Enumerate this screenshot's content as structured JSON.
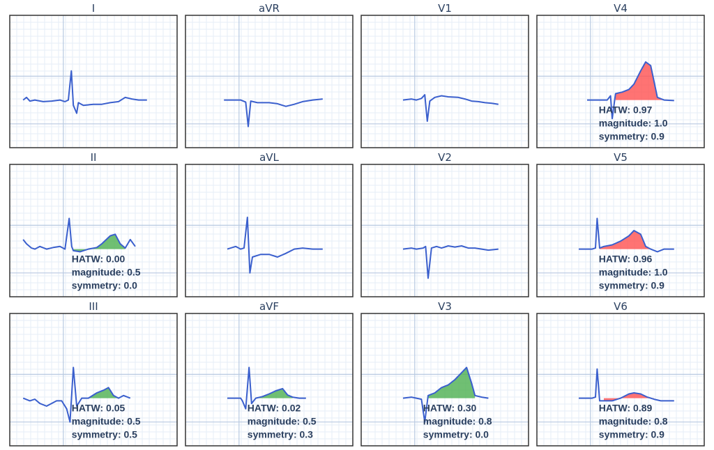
{
  "chart_data": [
    {
      "type": "line",
      "lead": "I",
      "grid": true,
      "trace": [
        [
          0.08,
          0
        ],
        [
          0.1,
          0.05
        ],
        [
          0.12,
          -0.02
        ],
        [
          0.15,
          0
        ],
        [
          0.2,
          -0.03
        ],
        [
          0.25,
          -0.02
        ],
        [
          0.3,
          0
        ],
        [
          0.33,
          -0.03
        ],
        [
          0.35,
          0
        ],
        [
          0.368,
          0.55
        ],
        [
          0.38,
          -0.1
        ],
        [
          0.4,
          -0.25
        ],
        [
          0.41,
          -0.05
        ],
        [
          0.44,
          -0.1
        ],
        [
          0.5,
          -0.08
        ],
        [
          0.55,
          -0.08
        ],
        [
          0.6,
          -0.05
        ],
        [
          0.65,
          -0.03
        ],
        [
          0.69,
          0.05
        ],
        [
          0.73,
          0.02
        ],
        [
          0.77,
          0
        ],
        [
          0.82,
          0
        ]
      ],
      "fill": null,
      "metrics": null
    },
    {
      "type": "line",
      "lead": "aVR",
      "grid": true,
      "trace": [
        [
          0.23,
          0
        ],
        [
          0.3,
          0
        ],
        [
          0.33,
          0
        ],
        [
          0.36,
          -0.04
        ],
        [
          0.375,
          -0.5
        ],
        [
          0.39,
          -0.02
        ],
        [
          0.43,
          -0.05
        ],
        [
          0.5,
          -0.05
        ],
        [
          0.55,
          -0.07
        ],
        [
          0.6,
          -0.12
        ],
        [
          0.65,
          -0.08
        ],
        [
          0.7,
          -0.03
        ],
        [
          0.76,
          0
        ],
        [
          0.82,
          0.02
        ]
      ],
      "fill": null,
      "metrics": null
    },
    {
      "type": "line",
      "lead": "V1",
      "grid": true,
      "trace": [
        [
          0.25,
          0
        ],
        [
          0.3,
          0.02
        ],
        [
          0.33,
          0
        ],
        [
          0.36,
          0.03
        ],
        [
          0.38,
          0.1
        ],
        [
          0.395,
          -0.4
        ],
        [
          0.41,
          -0.02
        ],
        [
          0.44,
          0.05
        ],
        [
          0.48,
          0.08
        ],
        [
          0.52,
          0.06
        ],
        [
          0.58,
          0.05
        ],
        [
          0.62,
          0.02
        ],
        [
          0.66,
          -0.02
        ],
        [
          0.7,
          -0.03
        ],
        [
          0.74,
          -0.05
        ],
        [
          0.78,
          -0.06
        ],
        [
          0.82,
          -0.08
        ]
      ],
      "fill": null,
      "metrics": null
    },
    {
      "type": "line",
      "lead": "V4",
      "grid": true,
      "trace": [
        [
          0.3,
          0
        ],
        [
          0.36,
          0
        ],
        [
          0.42,
          0
        ],
        [
          0.44,
          0.08
        ],
        [
          0.45,
          -0.35
        ],
        [
          0.47,
          0.12
        ],
        [
          0.51,
          0.15
        ],
        [
          0.55,
          0.2
        ],
        [
          0.58,
          0.3
        ],
        [
          0.62,
          0.55
        ],
        [
          0.65,
          0.72
        ],
        [
          0.68,
          0.65
        ],
        [
          0.7,
          0.35
        ],
        [
          0.72,
          0.05
        ],
        [
          0.76,
          0
        ],
        [
          0.82,
          -0.01
        ]
      ],
      "fill": {
        "color": "#ff5050",
        "from": 0.47,
        "to": 0.76
      },
      "metrics": {
        "hatw": "HATW: 0.97",
        "magnitude": "magnitude: 1.0",
        "symmetry": "symmetry: 0.9"
      }
    },
    {
      "type": "line",
      "lead": "II",
      "grid": true,
      "trace": [
        [
          0.08,
          0.18
        ],
        [
          0.1,
          0.1
        ],
        [
          0.13,
          0.02
        ],
        [
          0.15,
          0
        ],
        [
          0.18,
          0.05
        ],
        [
          0.22,
          0
        ],
        [
          0.26,
          0.03
        ],
        [
          0.3,
          0.05
        ],
        [
          0.33,
          0
        ],
        [
          0.355,
          0.58
        ],
        [
          0.37,
          0.05
        ],
        [
          0.38,
          -0.03
        ],
        [
          0.42,
          -0.05
        ],
        [
          0.47,
          0
        ],
        [
          0.52,
          0.03
        ],
        [
          0.55,
          0.1
        ],
        [
          0.6,
          0.25
        ],
        [
          0.63,
          0.28
        ],
        [
          0.66,
          0.1
        ],
        [
          0.69,
          0.02
        ],
        [
          0.72,
          0.18
        ],
        [
          0.75,
          0.05
        ]
      ],
      "fill": {
        "color": "#4caf50",
        "from": 0.38,
        "to": 0.69
      },
      "metrics": {
        "hatw": "HATW: 0.00",
        "magnitude": "magnitude: 0.5",
        "symmetry": "symmetry: 0.0"
      }
    },
    {
      "type": "line",
      "lead": "aVL",
      "grid": true,
      "trace": [
        [
          0.25,
          0
        ],
        [
          0.3,
          0.05
        ],
        [
          0.33,
          0
        ],
        [
          0.35,
          0.02
        ],
        [
          0.37,
          0.6
        ],
        [
          0.385,
          -0.45
        ],
        [
          0.4,
          -0.15
        ],
        [
          0.45,
          -0.1
        ],
        [
          0.5,
          -0.1
        ],
        [
          0.55,
          -0.15
        ],
        [
          0.6,
          -0.08
        ],
        [
          0.65,
          0
        ],
        [
          0.7,
          0.02
        ],
        [
          0.76,
          0
        ],
        [
          0.82,
          0
        ]
      ],
      "fill": null,
      "metrics": null
    },
    {
      "type": "line",
      "lead": "V2",
      "grid": true,
      "trace": [
        [
          0.25,
          0
        ],
        [
          0.3,
          0.02
        ],
        [
          0.33,
          0
        ],
        [
          0.37,
          0.02
        ],
        [
          0.385,
          0.05
        ],
        [
          0.4,
          -0.55
        ],
        [
          0.42,
          0.02
        ],
        [
          0.45,
          0.05
        ],
        [
          0.48,
          0.02
        ],
        [
          0.52,
          0.06
        ],
        [
          0.56,
          0.04
        ],
        [
          0.6,
          0.06
        ],
        [
          0.64,
          0.02
        ],
        [
          0.68,
          0.02
        ],
        [
          0.72,
          0
        ],
        [
          0.76,
          -0.02
        ],
        [
          0.82,
          0
        ]
      ],
      "fill": null,
      "metrics": null
    },
    {
      "type": "line",
      "lead": "V5",
      "grid": true,
      "trace": [
        [
          0.25,
          0
        ],
        [
          0.3,
          0
        ],
        [
          0.33,
          0
        ],
        [
          0.35,
          0.02
        ],
        [
          0.36,
          0.58
        ],
        [
          0.375,
          0.02
        ],
        [
          0.4,
          0.05
        ],
        [
          0.45,
          0.08
        ],
        [
          0.5,
          0.15
        ],
        [
          0.55,
          0.25
        ],
        [
          0.58,
          0.35
        ],
        [
          0.62,
          0.28
        ],
        [
          0.65,
          0.05
        ],
        [
          0.68,
          0
        ],
        [
          0.72,
          -0.05
        ],
        [
          0.76,
          0
        ],
        [
          0.82,
          0
        ]
      ],
      "fill": {
        "color": "#ff5050",
        "from": 0.375,
        "to": 0.7
      },
      "metrics": {
        "hatw": "HATW: 0.96",
        "magnitude": "magnitude: 1.0",
        "symmetry": "symmetry: 0.9"
      }
    },
    {
      "type": "line",
      "lead": "III",
      "grid": true,
      "trace": [
        [
          0.08,
          0
        ],
        [
          0.12,
          -0.05
        ],
        [
          0.15,
          -0.02
        ],
        [
          0.18,
          -0.1
        ],
        [
          0.22,
          -0.15
        ],
        [
          0.28,
          -0.05
        ],
        [
          0.31,
          -0.05
        ],
        [
          0.34,
          -0.2
        ],
        [
          0.36,
          -0.45
        ],
        [
          0.38,
          0.58
        ],
        [
          0.4,
          -0.15
        ],
        [
          0.43,
          0
        ],
        [
          0.47,
          0
        ],
        [
          0.52,
          0.1
        ],
        [
          0.56,
          0.15
        ],
        [
          0.59,
          0.2
        ],
        [
          0.62,
          0.05
        ],
        [
          0.65,
          0
        ],
        [
          0.68,
          0.05
        ],
        [
          0.72,
          0
        ]
      ],
      "fill": {
        "color": "#4caf50",
        "from": 0.45,
        "to": 0.66
      },
      "metrics": {
        "hatw": "HATW: 0.05",
        "magnitude": "magnitude: 0.5",
        "symmetry": "symmetry: 0.5"
      }
    },
    {
      "type": "line",
      "lead": "aVF",
      "grid": true,
      "trace": [
        [
          0.25,
          0
        ],
        [
          0.3,
          0
        ],
        [
          0.33,
          0
        ],
        [
          0.34,
          -0.05
        ],
        [
          0.36,
          -0.2
        ],
        [
          0.38,
          0.58
        ],
        [
          0.395,
          -0.1
        ],
        [
          0.42,
          0
        ],
        [
          0.46,
          0.03
        ],
        [
          0.5,
          0.08
        ],
        [
          0.54,
          0.14
        ],
        [
          0.58,
          0.18
        ],
        [
          0.61,
          0.06
        ],
        [
          0.64,
          0.02
        ],
        [
          0.68,
          0
        ],
        [
          0.72,
          0
        ]
      ],
      "fill": {
        "color": "#4caf50",
        "from": 0.42,
        "to": 0.64
      },
      "metrics": {
        "hatw": "HATW: 0.02",
        "magnitude": "magnitude: 0.5",
        "symmetry": "symmetry: 0.3"
      }
    },
    {
      "type": "line",
      "lead": "V3",
      "grid": true,
      "trace": [
        [
          0.25,
          0
        ],
        [
          0.3,
          0.02
        ],
        [
          0.33,
          0
        ],
        [
          0.36,
          -0.02
        ],
        [
          0.38,
          -0.45
        ],
        [
          0.4,
          0.05
        ],
        [
          0.44,
          0.1
        ],
        [
          0.48,
          0.2
        ],
        [
          0.52,
          0.25
        ],
        [
          0.56,
          0.35
        ],
        [
          0.6,
          0.48
        ],
        [
          0.63,
          0.58
        ],
        [
          0.66,
          0.28
        ],
        [
          0.68,
          0.05
        ],
        [
          0.72,
          0.02
        ],
        [
          0.76,
          0
        ]
      ],
      "fill": {
        "color": "#4caf50",
        "from": 0.4,
        "to": 0.68
      },
      "metrics": {
        "hatw": "HATW: 0.30",
        "magnitude": "magnitude: 0.8",
        "symmetry": "symmetry: 0.0"
      }
    },
    {
      "type": "line",
      "lead": "V6",
      "grid": true,
      "trace": [
        [
          0.25,
          0
        ],
        [
          0.3,
          0
        ],
        [
          0.33,
          0
        ],
        [
          0.35,
          0.02
        ],
        [
          0.36,
          0.55
        ],
        [
          0.375,
          -0.05
        ],
        [
          0.4,
          -0.05
        ],
        [
          0.45,
          -0.05
        ],
        [
          0.5,
          0
        ],
        [
          0.55,
          0.08
        ],
        [
          0.58,
          0.1
        ],
        [
          0.62,
          0.08
        ],
        [
          0.66,
          0.02
        ],
        [
          0.7,
          -0.02
        ],
        [
          0.74,
          -0.05
        ],
        [
          0.82,
          -0.05
        ]
      ],
      "fill": {
        "color": "#ff5050",
        "from": 0.4,
        "to": 0.7
      },
      "metrics": {
        "hatw": "HATW: 0.89",
        "magnitude": "magnitude: 0.8",
        "symmetry": "symmetry: 0.9"
      }
    }
  ],
  "colors": {
    "trace": "#3a5fcd",
    "grid_minor": "#e6edf7",
    "grid_major": "#b8c9e1",
    "frame": "#333333",
    "label": "#2a3f5f"
  }
}
